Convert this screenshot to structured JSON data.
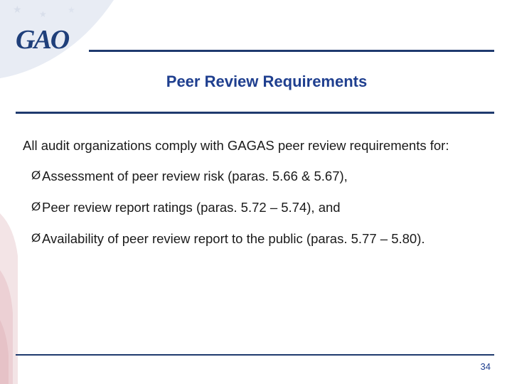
{
  "logo": "GAO",
  "title": "Peer Review Requirements",
  "intro": "All audit organizations comply with GAGAS peer review requirements for:",
  "bullets": [
    "Assessment of peer review risk (paras. 5.66 & 5.67),",
    "Peer review report ratings (paras. 5.72 – 5.74), and",
    "Availability of peer review report to the public (paras. 5.77 – 5.80)."
  ],
  "bullet_glyph": "Ø",
  "page_number": "34",
  "colors": {
    "title": "#1f3f8f",
    "rules": "#1f3a6e",
    "logo": "#1f3f7a"
  }
}
